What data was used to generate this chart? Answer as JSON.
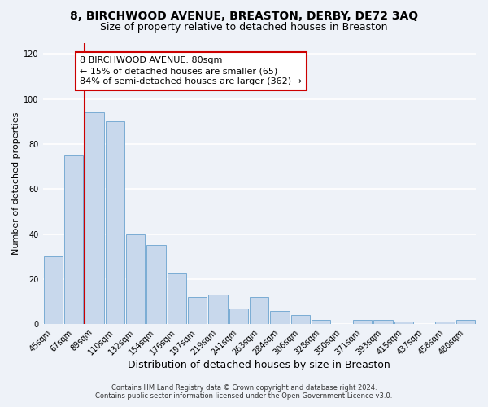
{
  "title1": "8, BIRCHWOOD AVENUE, BREASTON, DERBY, DE72 3AQ",
  "title2": "Size of property relative to detached houses in Breaston",
  "xlabel": "Distribution of detached houses by size in Breaston",
  "ylabel": "Number of detached properties",
  "bar_labels": [
    "45sqm",
    "67sqm",
    "89sqm",
    "110sqm",
    "132sqm",
    "154sqm",
    "176sqm",
    "197sqm",
    "219sqm",
    "241sqm",
    "263sqm",
    "284sqm",
    "306sqm",
    "328sqm",
    "350sqm",
    "371sqm",
    "393sqm",
    "415sqm",
    "437sqm",
    "458sqm",
    "480sqm"
  ],
  "bar_values": [
    30,
    75,
    94,
    90,
    40,
    35,
    23,
    12,
    13,
    7,
    12,
    6,
    4,
    2,
    0,
    2,
    2,
    1,
    0,
    1,
    2
  ],
  "bar_color": "#c8d8ec",
  "bar_edge_color": "#7aacd4",
  "vline_x_idx": 2,
  "vline_color": "#cc0000",
  "annotation_title": "8 BIRCHWOOD AVENUE: 80sqm",
  "annotation_line1": "← 15% of detached houses are smaller (65)",
  "annotation_line2": "84% of semi-detached houses are larger (362) →",
  "annotation_box_facecolor": "#ffffff",
  "annotation_box_edgecolor": "#cc0000",
  "ylim": [
    0,
    125
  ],
  "yticks": [
    0,
    20,
    40,
    60,
    80,
    100,
    120
  ],
  "footnote1": "Contains HM Land Registry data © Crown copyright and database right 2024.",
  "footnote2": "Contains public sector information licensed under the Open Government Licence v3.0.",
  "bg_color": "#eef2f8",
  "plot_bg_color": "#eef2f8",
  "grid_color": "#ffffff",
  "title1_fontsize": 10,
  "title2_fontsize": 9,
  "xlabel_fontsize": 9,
  "ylabel_fontsize": 8,
  "tick_fontsize": 7,
  "annot_fontsize": 8,
  "footnote_fontsize": 6
}
